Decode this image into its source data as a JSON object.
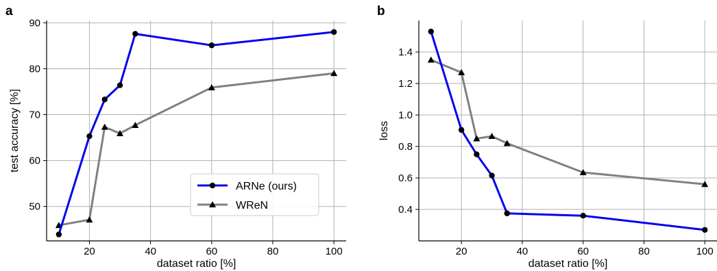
{
  "chart_data": [
    {
      "panel_label": "a",
      "type": "line",
      "xlabel": "dataset ratio [%]",
      "ylabel": "test accuracy [%]",
      "xlim": [
        6,
        104
      ],
      "ylim": [
        42.5,
        90.5
      ],
      "xticks": [
        20,
        40,
        60,
        80,
        100
      ],
      "yticks": [
        50,
        60,
        70,
        80,
        90
      ],
      "grid": true,
      "legend": "lower-right",
      "series": [
        {
          "name": "ARNe (ours)",
          "color": "#0000ee",
          "marker": "circle",
          "x": [
            10,
            20,
            25,
            30,
            35,
            60,
            100
          ],
          "y": [
            43.9,
            65.3,
            73.3,
            76.4,
            87.6,
            85.1,
            88.0
          ]
        },
        {
          "name": "WReN",
          "color": "#808080",
          "marker": "triangle",
          "x": [
            10,
            20,
            25,
            30,
            35,
            60,
            100
          ],
          "y": [
            45.9,
            47.1,
            67.3,
            65.9,
            67.7,
            75.9,
            79.0
          ]
        }
      ]
    },
    {
      "panel_label": "b",
      "type": "line",
      "xlabel": "dataset ratio [%]",
      "ylabel": "loss",
      "xlim": [
        6,
        104
      ],
      "ylim": [
        0.2,
        1.6
      ],
      "xticks": [
        20,
        40,
        60,
        80,
        100
      ],
      "yticks": [
        0.4,
        0.6,
        0.8,
        1.0,
        1.2,
        1.4
      ],
      "grid": true,
      "series": [
        {
          "name": "ARNe (ours)",
          "color": "#0000ee",
          "marker": "circle",
          "x": [
            10,
            20,
            25,
            30,
            35,
            60,
            100
          ],
          "y": [
            1.53,
            0.905,
            0.75,
            0.615,
            0.375,
            0.36,
            0.27
          ]
        },
        {
          "name": "WReN",
          "color": "#808080",
          "marker": "triangle",
          "x": [
            10,
            20,
            25,
            30,
            35,
            60,
            100
          ],
          "y": [
            1.35,
            1.27,
            0.85,
            0.865,
            0.82,
            0.635,
            0.56
          ]
        }
      ]
    }
  ]
}
